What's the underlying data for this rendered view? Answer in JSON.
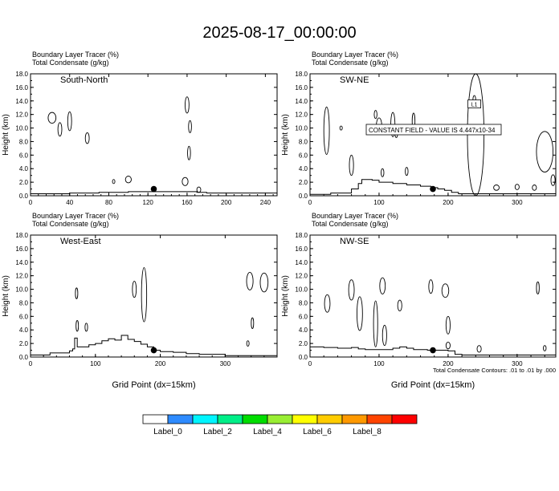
{
  "title": "2025-08-17_00:00:00",
  "chart_data": [
    {
      "type": "line",
      "panel": "South-North",
      "header": [
        "Boundary Layer Tracer   (%)",
        "Total Condensate   (g/kg)"
      ],
      "label": "South-North",
      "ylabel": "Height (km)",
      "xlabel": "",
      "xlim": [
        0,
        252
      ],
      "ylim": [
        0,
        18
      ],
      "xticks": [
        "0",
        "40",
        "80",
        "120",
        "160",
        "200",
        "240"
      ],
      "yticks": [
        "0.0",
        "2.0",
        "4.0",
        "6.0",
        "8.0",
        "10.0",
        "12.0",
        "14.0",
        "16.0",
        "18.0"
      ],
      "marker": {
        "x": 126,
        "y": 1.0
      },
      "series": [
        {
          "values": [
            [
              0,
              0.3
            ],
            [
              30,
              0.3
            ],
            [
              40,
              0.4
            ],
            [
              60,
              0.4
            ],
            [
              70,
              0.5
            ],
            [
              90,
              0.5
            ],
            [
              100,
              0.6
            ],
            [
              120,
              0.6
            ],
            [
              160,
              0.6
            ],
            [
              170,
              0.5
            ],
            [
              180,
              0.4
            ],
            [
              200,
              0.4
            ],
            [
              252,
              0.4
            ]
          ]
        }
      ]
    },
    {
      "type": "line",
      "panel": "SW-NE",
      "header": [
        "Boundary Layer Tracer   (%)",
        "Total Condensate   (g/kg)"
      ],
      "label": "SW-NE",
      "ylabel": "Height (km)",
      "xlabel": "",
      "xlim": [
        0,
        356
      ],
      "ylim": [
        0,
        18
      ],
      "xticks": [
        "0",
        "100",
        "200",
        "300"
      ],
      "yticks": [
        "0.0",
        "2.0",
        "4.0",
        "6.0",
        "8.0",
        "10.0",
        "12.0",
        "14.0",
        "16.0",
        "18.0"
      ],
      "annotation": "CONSTANT FIELD - VALUE IS 4.447x10-34",
      "box_label": "L1",
      "marker": {
        "x": 178,
        "y": 1.0
      },
      "series": [
        {
          "values": [
            [
              0,
              0.2
            ],
            [
              20,
              0.2
            ],
            [
              30,
              0.4
            ],
            [
              50,
              0.4
            ],
            [
              60,
              1.0
            ],
            [
              70,
              1.8
            ],
            [
              75,
              2.4
            ],
            [
              90,
              2.3
            ],
            [
              100,
              2.0
            ],
            [
              120,
              1.8
            ],
            [
              140,
              1.6
            ],
            [
              160,
              1.4
            ],
            [
              175,
              1.2
            ],
            [
              185,
              1.0
            ],
            [
              195,
              0.8
            ],
            [
              205,
              0.5
            ],
            [
              215,
              0.3
            ],
            [
              356,
              0.3
            ]
          ]
        }
      ]
    },
    {
      "type": "line",
      "panel": "West-East",
      "header": [
        "Boundary Layer Tracer   (%)",
        "Total Condensate   (g/kg)"
      ],
      "label": "West-East",
      "ylabel": "Height (km)",
      "xlabel": "Grid Point (dx=15km)",
      "xlim": [
        0,
        380
      ],
      "ylim": [
        0,
        18
      ],
      "xticks": [
        "0",
        "100",
        "200",
        "300"
      ],
      "yticks": [
        "0.0",
        "2.0",
        "4.0",
        "6.0",
        "8.0",
        "10.0",
        "12.0",
        "14.0",
        "16.0",
        "18.0"
      ],
      "marker": {
        "x": 190,
        "y": 1.0
      },
      "series": [
        {
          "values": [
            [
              0,
              0.3
            ],
            [
              20,
              0.3
            ],
            [
              30,
              0.6
            ],
            [
              50,
              0.6
            ],
            [
              60,
              0.9
            ],
            [
              65,
              1.2
            ],
            [
              68,
              2.8
            ],
            [
              72,
              1.5
            ],
            [
              80,
              1.5
            ],
            [
              90,
              1.8
            ],
            [
              100,
              2.0
            ],
            [
              110,
              2.4
            ],
            [
              120,
              2.7
            ],
            [
              130,
              2.5
            ],
            [
              140,
              3.2
            ],
            [
              150,
              2.6
            ],
            [
              160,
              2.3
            ],
            [
              170,
              1.9
            ],
            [
              180,
              1.5
            ],
            [
              190,
              1.0
            ],
            [
              200,
              0.8
            ],
            [
              220,
              0.7
            ],
            [
              240,
              0.5
            ],
            [
              260,
              0.4
            ],
            [
              290,
              0.4
            ],
            [
              300,
              0.2
            ],
            [
              380,
              0.2
            ]
          ]
        }
      ]
    },
    {
      "type": "line",
      "panel": "NW-SE",
      "header": [
        "Boundary Layer Tracer   (%)",
        "Total Condensate   (g/kg)"
      ],
      "label": "NW-SE",
      "ylabel": "Height (km)",
      "xlabel": "Grid Point (dx=15km)",
      "xlim": [
        0,
        356
      ],
      "ylim": [
        0,
        18
      ],
      "xticks": [
        "0",
        "100",
        "200",
        "300"
      ],
      "yticks": [
        "0.0",
        "2.0",
        "4.0",
        "6.0",
        "8.0",
        "10.0",
        "12.0",
        "14.0",
        "16.0",
        "18.0"
      ],
      "contour_note": "Total Condensate Contours: .01 to .01 by .000",
      "marker": {
        "x": 178,
        "y": 1.0
      },
      "series": [
        {
          "values": [
            [
              0,
              1.5
            ],
            [
              20,
              1.4
            ],
            [
              40,
              1.3
            ],
            [
              60,
              1.4
            ],
            [
              70,
              1.2
            ],
            [
              80,
              1.1
            ],
            [
              100,
              1.1
            ],
            [
              120,
              1.3
            ],
            [
              130,
              1.5
            ],
            [
              140,
              1.3
            ],
            [
              150,
              1.1
            ],
            [
              170,
              1.0
            ],
            [
              180,
              1.0
            ],
            [
              200,
              0.9
            ],
            [
              210,
              0.4
            ],
            [
              220,
              0.3
            ],
            [
              356,
              0.3
            ]
          ]
        }
      ]
    }
  ],
  "legend": {
    "colors": [
      "#ffffff",
      "#2e8bff",
      "#00f5ff",
      "#00ee88",
      "#00dd00",
      "#99ee33",
      "#ffff00",
      "#ffcc00",
      "#ff9900",
      "#ff4400",
      "#ff0000"
    ],
    "labels": [
      "Label_0",
      "Label_2",
      "Label_4",
      "Label_6",
      "Label_8"
    ]
  }
}
